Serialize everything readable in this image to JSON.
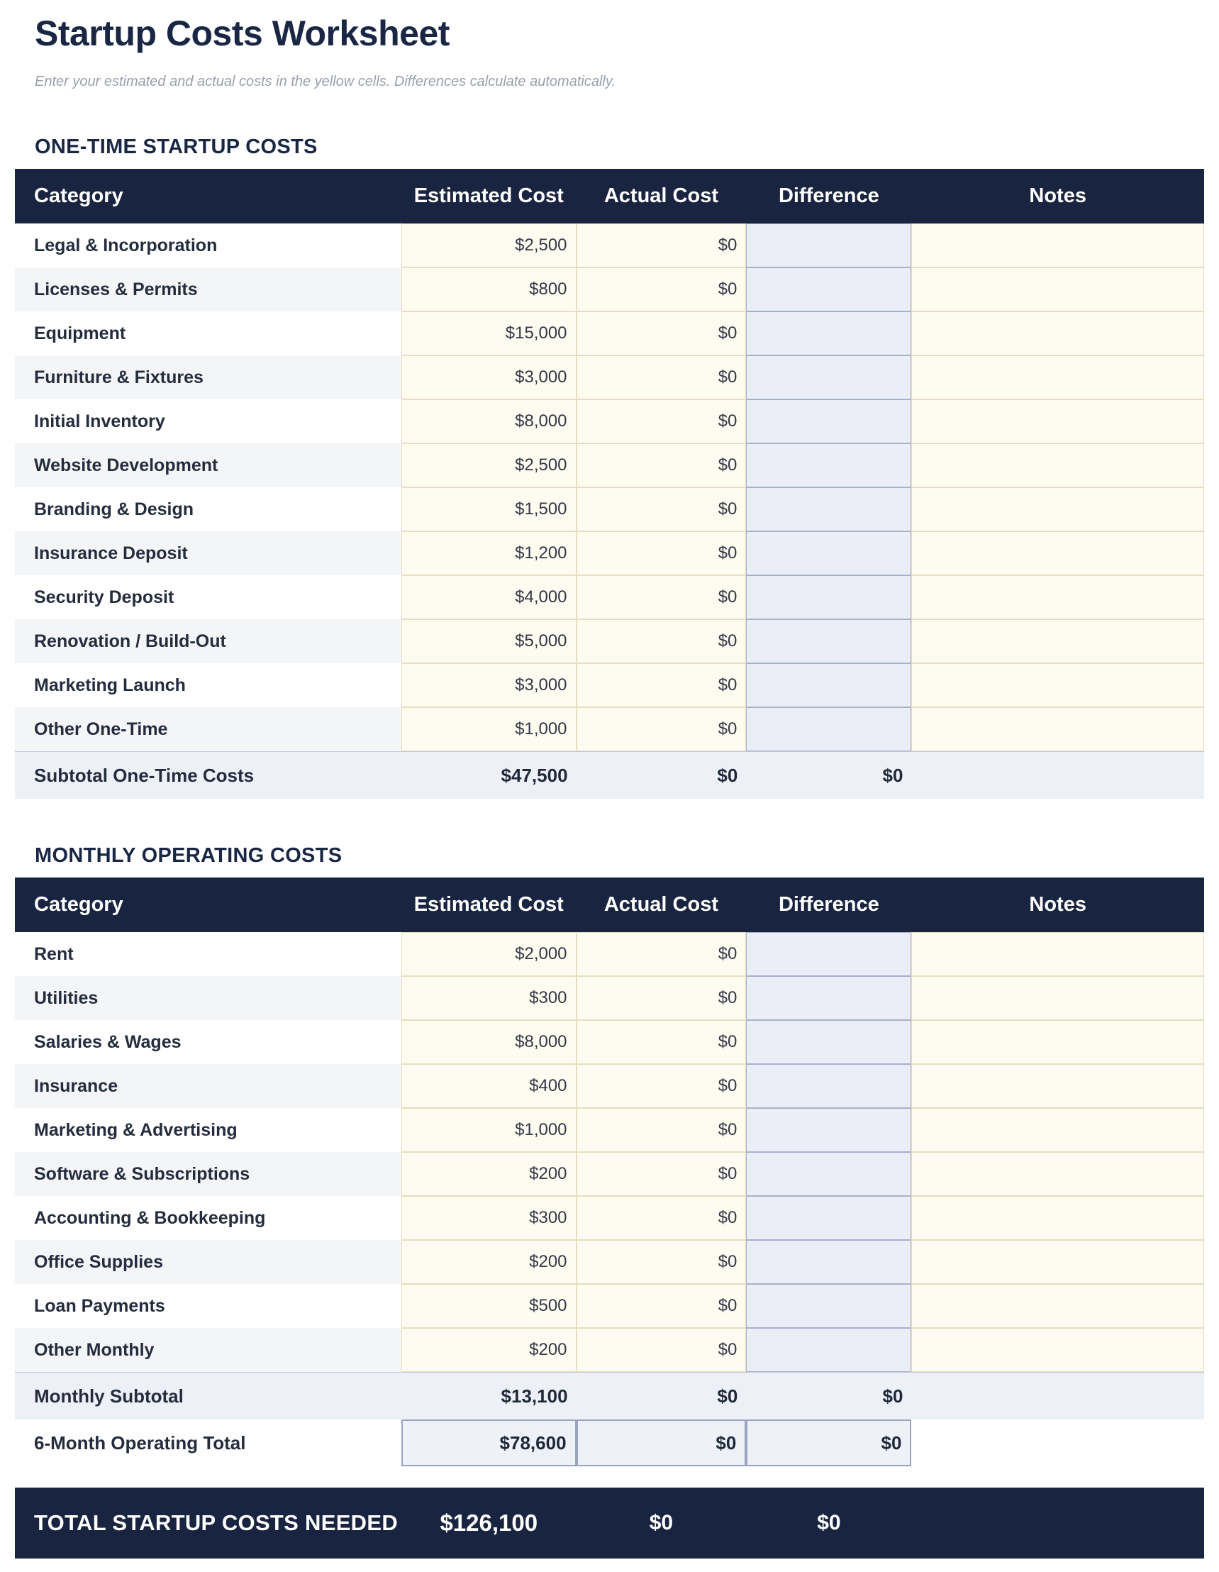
{
  "page": {
    "title": "Startup Costs Worksheet",
    "subtitle": "Enter your estimated and actual costs in the yellow cells. Differences calculate automatically."
  },
  "columns": [
    "Category",
    "Estimated Cost",
    "Actual Cost",
    "Difference",
    "Notes"
  ],
  "colors": {
    "header_navy": "#192540",
    "heading_text": "#1a2744",
    "input_cell_yellow": "#fefbf0",
    "input_cell_border": "#e7debf",
    "difference_cell": "#ebeef7",
    "difference_border": "#a9b1ca",
    "subtotal_row": "#edf0f7",
    "alt_row_gray": "#f4f5f7",
    "subtitle_gray": "#9aa1ad"
  },
  "sections": [
    {
      "heading": "ONE-TIME STARTUP COSTS",
      "rows": [
        {
          "category": "Legal & Incorporation",
          "estimated": "$2,500",
          "actual": "$0",
          "difference": "",
          "notes": ""
        },
        {
          "category": "Licenses & Permits",
          "estimated": "$800",
          "actual": "$0",
          "difference": "",
          "notes": ""
        },
        {
          "category": "Equipment",
          "estimated": "$15,000",
          "actual": "$0",
          "difference": "",
          "notes": ""
        },
        {
          "category": "Furniture & Fixtures",
          "estimated": "$3,000",
          "actual": "$0",
          "difference": "",
          "notes": ""
        },
        {
          "category": "Initial Inventory",
          "estimated": "$8,000",
          "actual": "$0",
          "difference": "",
          "notes": ""
        },
        {
          "category": "Website Development",
          "estimated": "$2,500",
          "actual": "$0",
          "difference": "",
          "notes": ""
        },
        {
          "category": "Branding & Design",
          "estimated": "$1,500",
          "actual": "$0",
          "difference": "",
          "notes": ""
        },
        {
          "category": "Insurance Deposit",
          "estimated": "$1,200",
          "actual": "$0",
          "difference": "",
          "notes": ""
        },
        {
          "category": "Security Deposit",
          "estimated": "$4,000",
          "actual": "$0",
          "difference": "",
          "notes": ""
        },
        {
          "category": "Renovation / Build-Out",
          "estimated": "$5,000",
          "actual": "$0",
          "difference": "",
          "notes": ""
        },
        {
          "category": "Marketing Launch",
          "estimated": "$3,000",
          "actual": "$0",
          "difference": "",
          "notes": ""
        },
        {
          "category": "Other One-Time",
          "estimated": "$1,000",
          "actual": "$0",
          "difference": "",
          "notes": ""
        }
      ],
      "subtotal": {
        "label": "Subtotal One-Time Costs",
        "estimated": "$47,500",
        "actual": "$0",
        "difference": "$0"
      }
    },
    {
      "heading": "MONTHLY OPERATING COSTS",
      "rows": [
        {
          "category": "Rent",
          "estimated": "$2,000",
          "actual": "$0",
          "difference": "",
          "notes": ""
        },
        {
          "category": "Utilities",
          "estimated": "$300",
          "actual": "$0",
          "difference": "",
          "notes": ""
        },
        {
          "category": "Salaries & Wages",
          "estimated": "$8,000",
          "actual": "$0",
          "difference": "",
          "notes": ""
        },
        {
          "category": "Insurance",
          "estimated": "$400",
          "actual": "$0",
          "difference": "",
          "notes": ""
        },
        {
          "category": "Marketing & Advertising",
          "estimated": "$1,000",
          "actual": "$0",
          "difference": "",
          "notes": ""
        },
        {
          "category": "Software & Subscriptions",
          "estimated": "$200",
          "actual": "$0",
          "difference": "",
          "notes": ""
        },
        {
          "category": "Accounting & Bookkeeping",
          "estimated": "$300",
          "actual": "$0",
          "difference": "",
          "notes": ""
        },
        {
          "category": "Office Supplies",
          "estimated": "$200",
          "actual": "$0",
          "difference": "",
          "notes": ""
        },
        {
          "category": "Loan Payments",
          "estimated": "$500",
          "actual": "$0",
          "difference": "",
          "notes": ""
        },
        {
          "category": "Other Monthly",
          "estimated": "$200",
          "actual": "$0",
          "difference": "",
          "notes": ""
        }
      ],
      "subtotal": {
        "label": "Monthly Subtotal",
        "estimated": "$13,100",
        "actual": "$0",
        "difference": "$0"
      },
      "extra_total": {
        "label": "6-Month Operating Total",
        "estimated": "$78,600",
        "actual": "$0",
        "difference": "$0"
      }
    }
  ],
  "grand_total": {
    "label": "TOTAL STARTUP COSTS NEEDED",
    "estimated": "$126,100",
    "actual": "$0",
    "difference": "$0"
  }
}
